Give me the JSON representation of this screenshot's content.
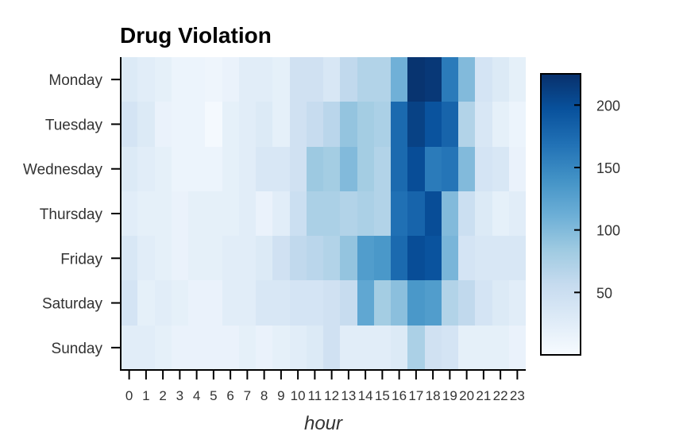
{
  "chart_data": {
    "type": "heatmap",
    "title": "Drug Violation",
    "xlabel": "hour",
    "ylabel": "",
    "x": [
      "0",
      "1",
      "2",
      "3",
      "4",
      "5",
      "6",
      "7",
      "8",
      "9",
      "10",
      "11",
      "12",
      "13",
      "14",
      "15",
      "16",
      "17",
      "18",
      "19",
      "20",
      "21",
      "22",
      "23"
    ],
    "y": [
      "Monday",
      "Tuesday",
      "Wednesday",
      "Thursday",
      "Friday",
      "Saturday",
      "Sunday"
    ],
    "values": [
      [
        30,
        25,
        20,
        12,
        12,
        10,
        15,
        25,
        25,
        20,
        45,
        45,
        35,
        60,
        70,
        70,
        110,
        222,
        218,
        160,
        100,
        40,
        30,
        20
      ],
      [
        40,
        30,
        15,
        12,
        12,
        3,
        20,
        25,
        30,
        20,
        45,
        55,
        65,
        90,
        80,
        75,
        175,
        210,
        195,
        180,
        70,
        35,
        20,
        12
      ],
      [
        30,
        25,
        20,
        12,
        12,
        12,
        20,
        25,
        35,
        35,
        45,
        85,
        80,
        100,
        80,
        70,
        175,
        200,
        160,
        165,
        100,
        40,
        35,
        15
      ],
      [
        25,
        20,
        20,
        15,
        20,
        20,
        20,
        25,
        15,
        25,
        50,
        75,
        75,
        70,
        75,
        70,
        170,
        180,
        200,
        100,
        50,
        30,
        20,
        25
      ],
      [
        35,
        25,
        20,
        15,
        20,
        20,
        25,
        25,
        30,
        45,
        60,
        65,
        70,
        90,
        130,
        135,
        175,
        200,
        195,
        105,
        40,
        35,
        35,
        35
      ],
      [
        40,
        20,
        25,
        20,
        15,
        15,
        25,
        25,
        35,
        35,
        40,
        40,
        45,
        55,
        120,
        80,
        95,
        135,
        130,
        70,
        60,
        40,
        30,
        25
      ],
      [
        25,
        25,
        20,
        15,
        15,
        15,
        15,
        20,
        15,
        20,
        25,
        30,
        45,
        25,
        25,
        25,
        30,
        75,
        45,
        40,
        20,
        20,
        20,
        15
      ]
    ],
    "colorbar": {
      "min": 0,
      "max": 225,
      "ticks": [
        50,
        100,
        150,
        200
      ],
      "colors": [
        "#f7fbff",
        "#deebf7",
        "#c6dbef",
        "#9ecae1",
        "#6baed6",
        "#4292c6",
        "#2171b5",
        "#08519c",
        "#08306b"
      ]
    }
  }
}
